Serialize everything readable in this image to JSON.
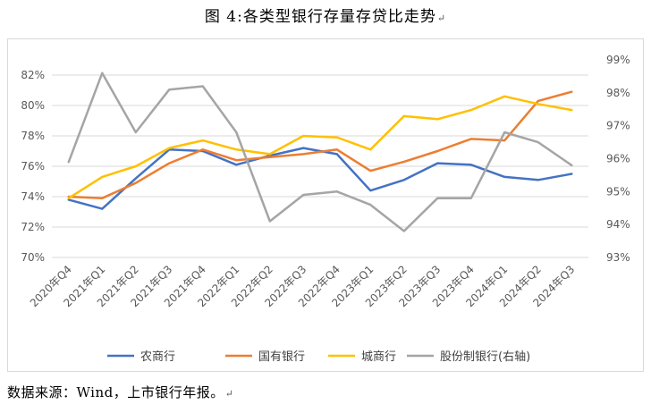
{
  "title": "图 4:各类型银行存量存贷比走势",
  "source_note": "数据来源：Wind，上市银行年报。",
  "return_mark": "↵",
  "chart_data": {
    "type": "line",
    "categories": [
      "2020年Q4",
      "2021年Q1",
      "2021年Q2",
      "2021年Q3",
      "2021年Q4",
      "2022年Q1",
      "2022年Q2",
      "2022年Q3",
      "2022年Q4",
      "2023年Q1",
      "2023年Q2",
      "2023年Q3",
      "2023年Q4",
      "2024年Q1",
      "2024年Q2",
      "2024年Q3"
    ],
    "left_axis": {
      "ylim": [
        70,
        82
      ],
      "ticks": [
        "70%",
        "72%",
        "74%",
        "76%",
        "78%",
        "80%",
        "82%"
      ]
    },
    "right_axis": {
      "ylim": [
        93,
        99
      ],
      "ticks": [
        "93%",
        "94%",
        "95%",
        "96%",
        "97%",
        "98%",
        "99%"
      ]
    },
    "grid": true,
    "legend_position": "bottom",
    "series": [
      {
        "name": "农商行",
        "axis": "left",
        "color": "#4472c4",
        "values": [
          73.8,
          73.2,
          75.2,
          77.1,
          77.0,
          76.1,
          76.7,
          77.2,
          76.8,
          74.4,
          75.1,
          76.2,
          76.1,
          75.3,
          75.1,
          75.5
        ]
      },
      {
        "name": "国有银行",
        "axis": "left",
        "color": "#ed7d31",
        "values": [
          74.0,
          73.9,
          74.9,
          76.2,
          77.1,
          76.4,
          76.6,
          76.8,
          77.1,
          75.7,
          76.3,
          77.0,
          77.8,
          77.7,
          80.3,
          80.9
        ]
      },
      {
        "name": "城商行",
        "axis": "left",
        "color": "#ffc000",
        "values": [
          73.9,
          75.3,
          76.0,
          77.2,
          77.7,
          77.1,
          76.8,
          78.0,
          77.9,
          77.1,
          79.3,
          79.1,
          79.7,
          80.6,
          80.1,
          79.7
        ]
      },
      {
        "name": "股份制银行(右轴)",
        "axis": "right",
        "color": "#a5a5a5",
        "values": [
          95.9,
          98.6,
          96.8,
          98.1,
          98.2,
          96.8,
          94.1,
          94.9,
          95.0,
          94.6,
          93.8,
          94.8,
          94.8,
          96.8,
          96.5,
          95.8
        ]
      }
    ]
  }
}
